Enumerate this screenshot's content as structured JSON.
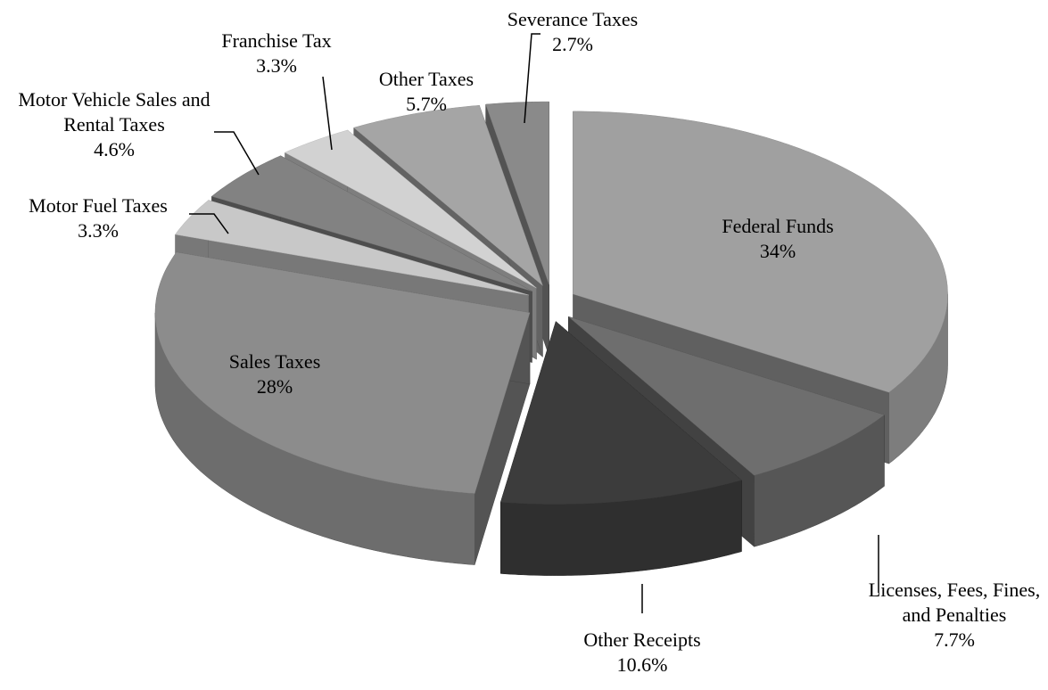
{
  "chart_data": {
    "type": "pie3d",
    "categories": [
      "Federal Funds",
      "Licenses, Fees, Fines, and Penalties",
      "Other Receipts",
      "Sales Taxes",
      "Motor Fuel Taxes",
      "Motor Vehicle Sales and Rental Taxes",
      "Franchise Tax",
      "Other Taxes",
      "Severance Taxes"
    ],
    "values": [
      34,
      7.7,
      10.6,
      28,
      3.3,
      4.6,
      3.3,
      5.7,
      2.7
    ],
    "value_labels": [
      "34%",
      "7.7%",
      "10.6%",
      "28%",
      "3.3%",
      "4.6%",
      "3.3%",
      "5.7%",
      "2.7%"
    ],
    "colors": [
      "#a0a0a0",
      "#6e6e6e",
      "#3c3c3c",
      "#8c8c8c",
      "#c8c8c8",
      "#828282",
      "#d2d2d2",
      "#a5a5a5",
      "#8a8a8a"
    ]
  }
}
